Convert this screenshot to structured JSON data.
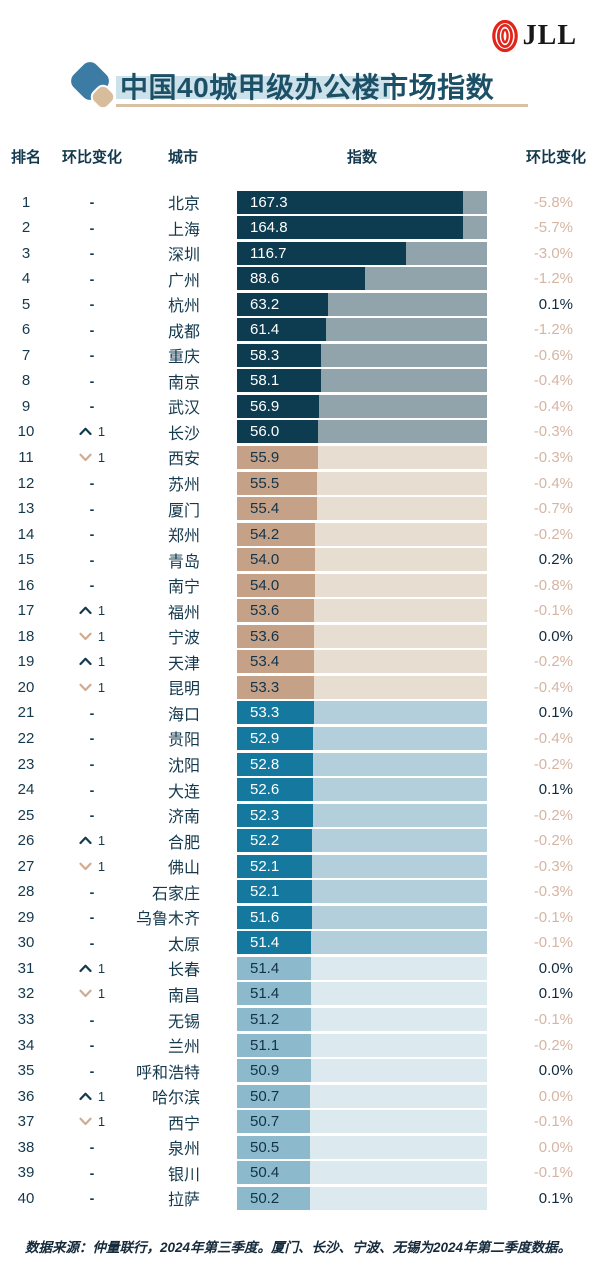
{
  "logo": {
    "brand": "JLL"
  },
  "header": {
    "title": "中国40城甲级办公楼市场指数"
  },
  "table_columns": {
    "rank": "排名",
    "move": "环比变化",
    "city": "城市",
    "index": "指数",
    "change": "环比变化"
  },
  "footer": {
    "source": "数据来源：仲量联行，2024年第三季度。厦门、长沙、宁波、无锡为2024年第二季度数据。"
  },
  "icons": {
    "title_mark": "diamond-icon",
    "logo_mark": "jll-rings-icon",
    "up": "chevron-up-icon",
    "down": "chevron-down-icon",
    "none": "dash"
  },
  "colors": {
    "title_text": "#1c5066",
    "title_highlight": "#cde1ea",
    "title_underline": "#d8c1a3",
    "logo_red": "#e1251b",
    "header_text": "#14394d",
    "change_negative": "#d6b5a3",
    "change_positive": "#10293b",
    "arrow_up": "#14394d",
    "arrow_down": "#d0ab90",
    "bar_groups": [
      {
        "fill": "#0d3b4f",
        "track": "#91a4ac",
        "label": "#ffffff"
      },
      {
        "fill": "#c5a287",
        "track": "#e8ddd1",
        "label": "#12334a"
      },
      {
        "fill": "#15799f",
        "track": "#b3cfdc",
        "label": "#ffffff"
      },
      {
        "fill": "#8cb9cc",
        "track": "#dce9ef",
        "label": "#12334a"
      }
    ]
  },
  "chart_data": {
    "type": "bar",
    "orientation": "horizontal",
    "title": "中国40城甲级办公楼市场指数",
    "value_axis_label": "指数",
    "scale": {
      "width_value_max": 173,
      "width_pct_cap": 90.4
    },
    "rows": [
      {
        "rank": 1,
        "move": "-",
        "city": "北京",
        "value": "167.3",
        "change": "-5.8%",
        "muted": true
      },
      {
        "rank": 2,
        "move": "-",
        "city": "上海",
        "value": "164.8",
        "change": "-5.7%",
        "muted": true
      },
      {
        "rank": 3,
        "move": "-",
        "city": "深圳",
        "value": "116.7",
        "change": "-3.0%",
        "muted": true
      },
      {
        "rank": 4,
        "move": "-",
        "city": "广州",
        "value": "88.6",
        "change": "-1.2%",
        "muted": true
      },
      {
        "rank": 5,
        "move": "-",
        "city": "杭州",
        "value": "63.2",
        "change": "0.1%",
        "muted": false
      },
      {
        "rank": 6,
        "move": "-",
        "city": "成都",
        "value": "61.4",
        "change": "-1.2%",
        "muted": true
      },
      {
        "rank": 7,
        "move": "-",
        "city": "重庆",
        "value": "58.3",
        "change": "-0.6%",
        "muted": true
      },
      {
        "rank": 8,
        "move": "-",
        "city": "南京",
        "value": "58.1",
        "change": "-0.4%",
        "muted": true
      },
      {
        "rank": 9,
        "move": "-",
        "city": "武汉",
        "value": "56.9",
        "change": "-0.4%",
        "muted": true
      },
      {
        "rank": 10,
        "move": "up1",
        "city": "长沙",
        "value": "56.0",
        "change": "-0.3%",
        "muted": true
      },
      {
        "rank": 11,
        "move": "dn1",
        "city": "西安",
        "value": "55.9",
        "change": "-0.3%",
        "muted": true
      },
      {
        "rank": 12,
        "move": "-",
        "city": "苏州",
        "value": "55.5",
        "change": "-0.4%",
        "muted": true
      },
      {
        "rank": 13,
        "move": "-",
        "city": "厦门",
        "value": "55.4",
        "change": "-0.7%",
        "muted": true
      },
      {
        "rank": 14,
        "move": "-",
        "city": "郑州",
        "value": "54.2",
        "change": "-0.2%",
        "muted": true
      },
      {
        "rank": 15,
        "move": "-",
        "city": "青岛",
        "value": "54.0",
        "change": "0.2%",
        "muted": false
      },
      {
        "rank": 16,
        "move": "-",
        "city": "南宁",
        "value": "54.0",
        "change": "-0.8%",
        "muted": true
      },
      {
        "rank": 17,
        "move": "up1",
        "city": "福州",
        "value": "53.6",
        "change": "-0.1%",
        "muted": true
      },
      {
        "rank": 18,
        "move": "dn1",
        "city": "宁波",
        "value": "53.6",
        "change": "0.0%",
        "muted": false
      },
      {
        "rank": 19,
        "move": "up1",
        "city": "天津",
        "value": "53.4",
        "change": "-0.2%",
        "muted": true
      },
      {
        "rank": 20,
        "move": "dn1",
        "city": "昆明",
        "value": "53.3",
        "change": "-0.4%",
        "muted": true
      },
      {
        "rank": 21,
        "move": "-",
        "city": "海口",
        "value": "53.3",
        "change": "0.1%",
        "muted": false
      },
      {
        "rank": 22,
        "move": "-",
        "city": "贵阳",
        "value": "52.9",
        "change": "-0.4%",
        "muted": true
      },
      {
        "rank": 23,
        "move": "-",
        "city": "沈阳",
        "value": "52.8",
        "change": "-0.2%",
        "muted": true
      },
      {
        "rank": 24,
        "move": "-",
        "city": "大连",
        "value": "52.6",
        "change": "0.1%",
        "muted": false
      },
      {
        "rank": 25,
        "move": "-",
        "city": "济南",
        "value": "52.3",
        "change": "-0.2%",
        "muted": true
      },
      {
        "rank": 26,
        "move": "up1",
        "city": "合肥",
        "value": "52.2",
        "change": "-0.2%",
        "muted": true
      },
      {
        "rank": 27,
        "move": "dn1",
        "city": "佛山",
        "value": "52.1",
        "change": "-0.3%",
        "muted": true
      },
      {
        "rank": 28,
        "move": "-",
        "city": "石家庄",
        "value": "52.1",
        "change": "-0.3%",
        "muted": true
      },
      {
        "rank": 29,
        "move": "-",
        "city": "乌鲁木齐",
        "value": "51.6",
        "change": "-0.1%",
        "muted": true
      },
      {
        "rank": 30,
        "move": "-",
        "city": "太原",
        "value": "51.4",
        "change": "-0.1%",
        "muted": true
      },
      {
        "rank": 31,
        "move": "up1",
        "city": "长春",
        "value": "51.4",
        "change": "0.0%",
        "muted": false
      },
      {
        "rank": 32,
        "move": "dn1",
        "city": "南昌",
        "value": "51.4",
        "change": "0.1%",
        "muted": false
      },
      {
        "rank": 33,
        "move": "-",
        "city": "无锡",
        "value": "51.2",
        "change": "-0.1%",
        "muted": true
      },
      {
        "rank": 34,
        "move": "-",
        "city": "兰州",
        "value": "51.1",
        "change": "-0.2%",
        "muted": true
      },
      {
        "rank": 35,
        "move": "-",
        "city": "呼和浩特",
        "value": "50.9",
        "change": "0.0%",
        "muted": false
      },
      {
        "rank": 36,
        "move": "up1",
        "city": "哈尔滨",
        "value": "50.7",
        "change": "0.0%",
        "muted": true
      },
      {
        "rank": 37,
        "move": "dn1",
        "city": "西宁",
        "value": "50.7",
        "change": "-0.1%",
        "muted": true
      },
      {
        "rank": 38,
        "move": "-",
        "city": "泉州",
        "value": "50.5",
        "change": "0.0%",
        "muted": true
      },
      {
        "rank": 39,
        "move": "-",
        "city": "银川",
        "value": "50.4",
        "change": "-0.1%",
        "muted": true
      },
      {
        "rank": 40,
        "move": "-",
        "city": "拉萨",
        "value": "50.2",
        "change": "0.1%",
        "muted": false
      }
    ]
  }
}
